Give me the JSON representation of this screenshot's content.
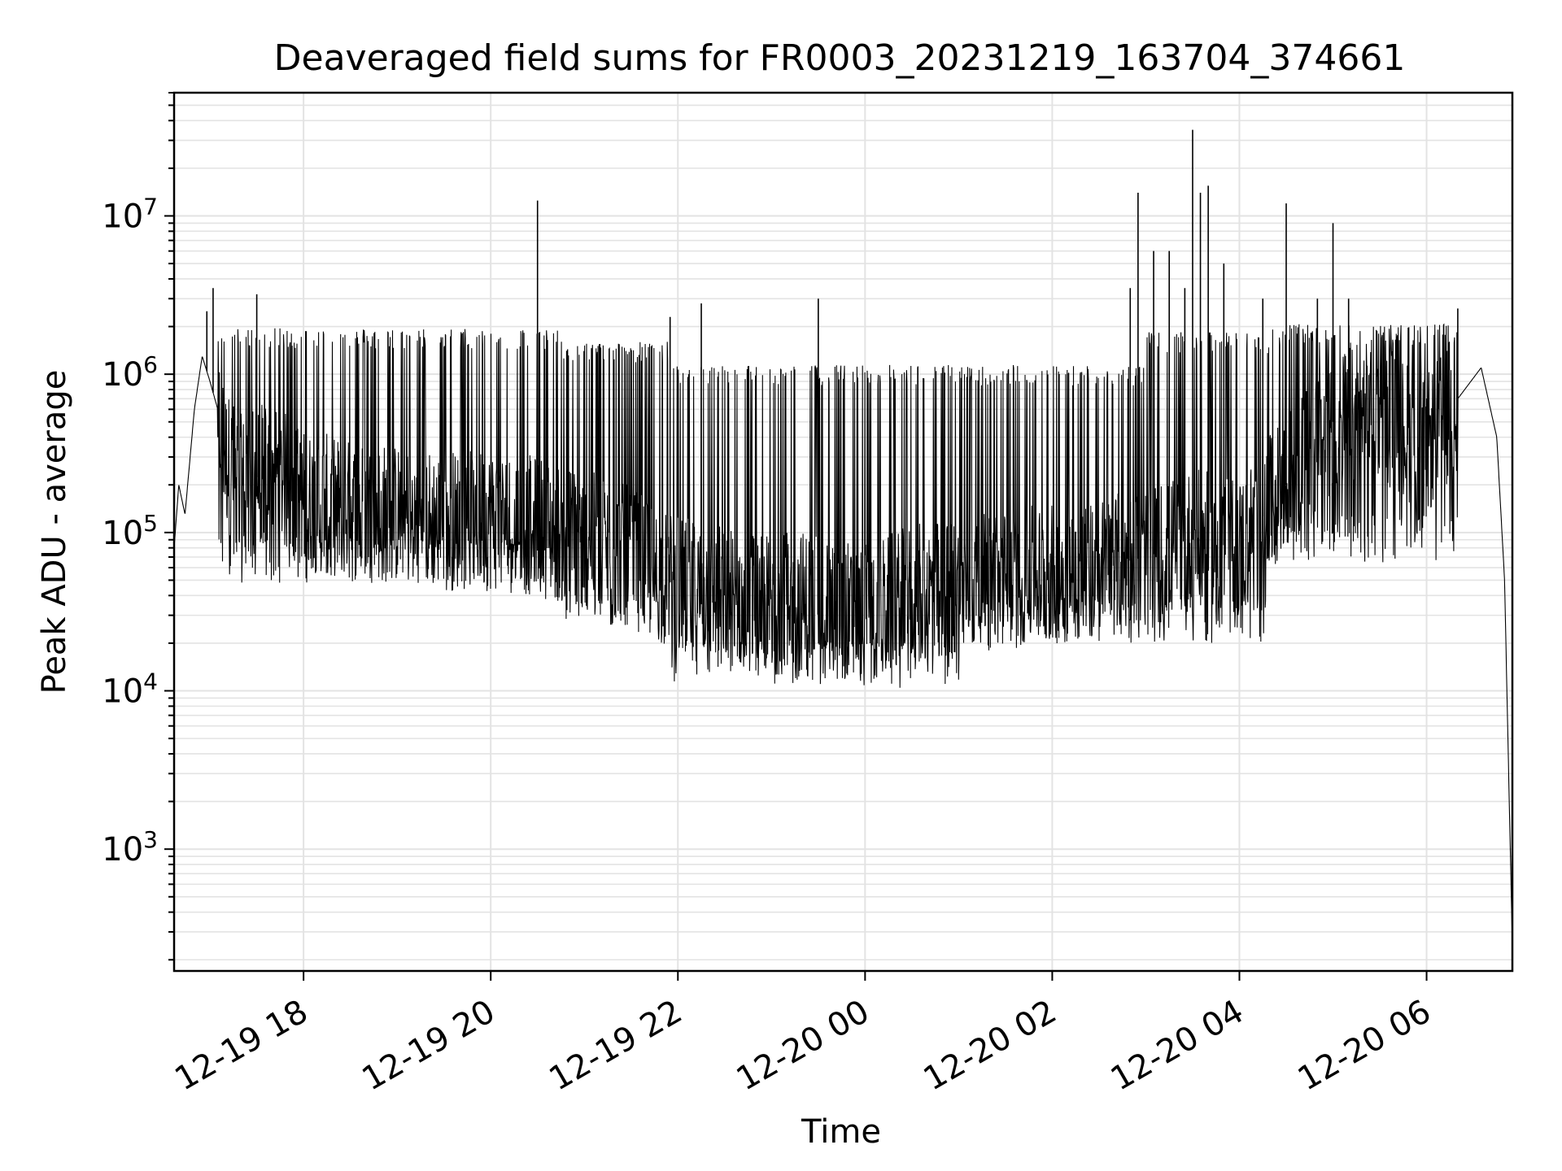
{
  "chart_data": {
    "type": "line",
    "title": "Deaveraged field sums for FR0003_20231219_163704_374661",
    "xlabel": "Time",
    "ylabel": "Peak ADU - average",
    "yscale": "log",
    "ylim": [
      170,
      60000000
    ],
    "xlim": [
      "2023-12-19 16:37",
      "2023-12-20 06:55"
    ],
    "grid": true,
    "line_color": "#000000",
    "grid_color": "#e3e3e3",
    "x_ticks": [
      {
        "value": "2023-12-19 18:00",
        "label": "12-19 18"
      },
      {
        "value": "2023-12-19 20:00",
        "label": "12-19 20"
      },
      {
        "value": "2023-12-19 22:00",
        "label": "12-19 22"
      },
      {
        "value": "2023-12-20 00:00",
        "label": "12-20 00"
      },
      {
        "value": "2023-12-20 02:00",
        "label": "12-20 02"
      },
      {
        "value": "2023-12-20 04:00",
        "label": "12-20 04"
      },
      {
        "value": "2023-12-20 06:00",
        "label": "12-20 06"
      }
    ],
    "y_ticks": [
      {
        "value": 1000,
        "base": "10",
        "exp": "3"
      },
      {
        "value": 10000,
        "base": "10",
        "exp": "4"
      },
      {
        "value": 100000,
        "base": "10",
        "exp": "5"
      },
      {
        "value": 1000000,
        "base": "10",
        "exp": "6"
      },
      {
        "value": 10000000,
        "base": "10",
        "exp": "7"
      }
    ],
    "series": [
      {
        "values": [
          [
            "2023-12-19 16:37",
            80000
          ],
          [
            "2023-12-19 16:40",
            200000
          ],
          [
            "2023-12-19 16:44",
            130000
          ],
          [
            "2023-12-19 16:50",
            600000
          ],
          [
            "2023-12-19 16:55",
            1300000
          ],
          [
            "2023-12-19 17:00",
            900000
          ],
          [
            "2023-12-19 17:05",
            600000
          ],
          [
            "2023-12-19 17:10",
            300000
          ],
          [
            "2023-12-19 17:20",
            200000
          ],
          [
            "2023-12-19 17:40",
            250000
          ],
          [
            "2023-12-19 18:00",
            160000
          ],
          [
            "2023-12-19 18:30",
            140000
          ],
          [
            "2023-12-19 19:00",
            130000
          ],
          [
            "2023-12-19 19:30",
            120000
          ],
          [
            "2023-12-19 20:00",
            120000
          ],
          [
            "2023-12-19 20:30",
            110000
          ],
          [
            "2023-12-19 21:00",
            90000
          ],
          [
            "2023-12-19 21:30",
            70000
          ],
          [
            "2023-12-19 22:00",
            45000
          ],
          [
            "2023-12-19 22:30",
            40000
          ],
          [
            "2023-12-19 23:00",
            35000
          ],
          [
            "2023-12-19 23:30",
            38000
          ],
          [
            "2023-12-20 00:00",
            30000
          ],
          [
            "2023-12-20 00:30",
            40000
          ],
          [
            "2023-12-20 01:00",
            45000
          ],
          [
            "2023-12-20 01:30",
            50000
          ],
          [
            "2023-12-20 02:00",
            55000
          ],
          [
            "2023-12-20 02:30",
            60000
          ],
          [
            "2023-12-20 03:00",
            70000
          ],
          [
            "2023-12-20 03:30",
            90000
          ],
          [
            "2023-12-20 04:00",
            80000
          ],
          [
            "2023-12-20 04:30",
            200000
          ],
          [
            "2023-12-20 05:00",
            500000
          ],
          [
            "2023-12-20 05:30",
            600000
          ],
          [
            "2023-12-20 06:00",
            350000
          ],
          [
            "2023-12-20 06:20",
            700000
          ],
          [
            "2023-12-20 06:35",
            1100000
          ],
          [
            "2023-12-20 06:45",
            400000
          ],
          [
            "2023-12-20 06:50",
            50000
          ],
          [
            "2023-12-20 06:53",
            2000
          ],
          [
            "2023-12-20 06:55",
            250
          ]
        ]
      }
    ],
    "spikes": [
      [
        "2023-12-19 16:58",
        2500000
      ],
      [
        "2023-12-19 17:02",
        3500000
      ],
      [
        "2023-12-19 17:30",
        3200000
      ],
      [
        "2023-12-19 20:30",
        12500000
      ],
      [
        "2023-12-19 21:55",
        2300000
      ],
      [
        "2023-12-19 22:15",
        2800000
      ],
      [
        "2023-12-19 23:30",
        3000000
      ],
      [
        "2023-12-20 02:50",
        3500000
      ],
      [
        "2023-12-20 02:55",
        14000000
      ],
      [
        "2023-12-20 03:05",
        6000000
      ],
      [
        "2023-12-20 03:15",
        6000000
      ],
      [
        "2023-12-20 03:25",
        3500000
      ],
      [
        "2023-12-20 03:30",
        35000000
      ],
      [
        "2023-12-20 03:35",
        14000000
      ],
      [
        "2023-12-20 03:40",
        15500000
      ],
      [
        "2023-12-20 03:50",
        5000000
      ],
      [
        "2023-12-20 04:15",
        3000000
      ],
      [
        "2023-12-20 04:30",
        12000000
      ],
      [
        "2023-12-20 04:50",
        3000000
      ],
      [
        "2023-12-20 05:00",
        9000000
      ],
      [
        "2023-12-20 05:10",
        3000000
      ],
      [
        "2023-12-20 06:20",
        2600000
      ]
    ],
    "segments": [
      {
        "start": "2023-12-19 17:05",
        "end": "2023-12-19 20:45",
        "low": 60000,
        "high": 1700000
      },
      {
        "start": "2023-12-19 20:45",
        "end": "2023-12-19 21:55",
        "low": 30000,
        "high": 1400000
      },
      {
        "start": "2023-12-19 21:55",
        "end": "2023-12-20 01:00",
        "low": 13000,
        "high": 1000000
      },
      {
        "start": "2023-12-20 01:00",
        "end": "2023-12-20 03:00",
        "low": 25000,
        "high": 1000000
      },
      {
        "start": "2023-12-20 03:00",
        "end": "2023-12-20 04:20",
        "low": 25000,
        "high": 1600000
      },
      {
        "start": "2023-12-20 04:20",
        "end": "2023-12-20 06:20",
        "low": 80000,
        "high": 1800000
      }
    ]
  }
}
